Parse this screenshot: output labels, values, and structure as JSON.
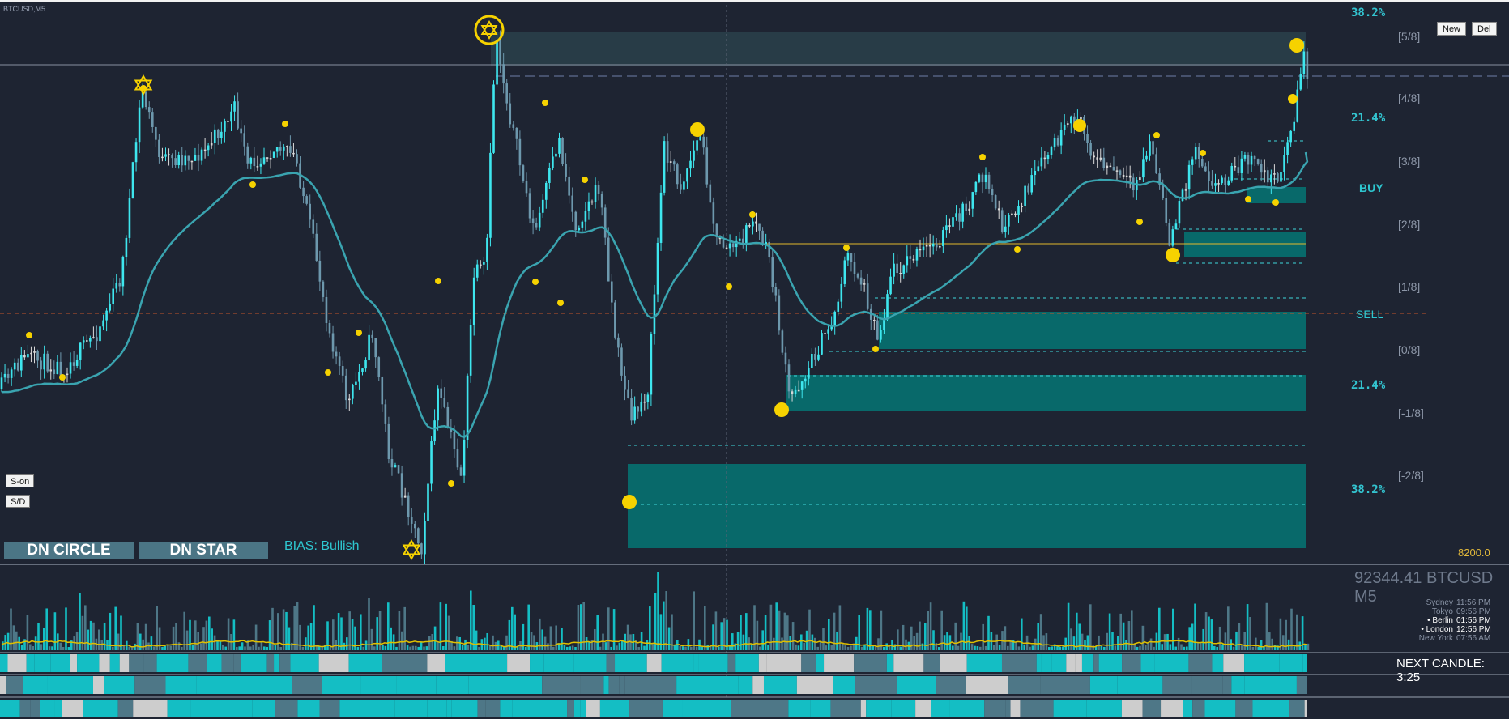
{
  "symbol_title": "BTCUSD,M5",
  "toolbar": {
    "new_label": "New",
    "del_label": "Del"
  },
  "side_buttons": {
    "s_on": "S-on",
    "s_d": "S/D"
  },
  "tags": {
    "circle": "DN CIRCLE",
    "star": "DN STAR"
  },
  "bias": "BIAS: Bullish",
  "signals": {
    "buy": "BUY",
    "sell": "SELL"
  },
  "fib_levels": [
    {
      "label": "38.2%"
    },
    {
      "label": "21.4%"
    },
    {
      "label": "21.4%"
    },
    {
      "label": "38.2%"
    }
  ],
  "murrey_levels": [
    "[5/8]",
    "[4/8]",
    "[3/8]",
    "[2/8]",
    "[1/8]",
    "[0/8]",
    "[-1/8]",
    "[-2/8]"
  ],
  "price_label": "8200.0",
  "ticker": "92344.41 BTCUSD M5",
  "sessions": [
    {
      "city": "Sydney",
      "time": "11:56 PM",
      "active": false
    },
    {
      "city": "Tokyo",
      "time": "09:56 PM",
      "active": false
    },
    {
      "city": "• Berlin",
      "time": "01:56 PM",
      "active": true
    },
    {
      "city": "• London",
      "time": "12:56 PM",
      "active": true
    },
    {
      "city": "New York",
      "time": "07:56 AM",
      "active": false
    }
  ],
  "next_candle": "NEXT CANDLE: 3:25",
  "colors": {
    "background": "#1e2432",
    "bull_candle": "#3ee6ee",
    "neutral_candle": "#d9d9d9",
    "bear_candle": "#6d98ad",
    "moving_average": "#3aa4b0",
    "zone": "#08696a",
    "marker": "#f6d200",
    "bull_bar": "#14bec4",
    "bear_bar": "#4e7787",
    "neutral_bar": "#cdcdcd"
  }
}
